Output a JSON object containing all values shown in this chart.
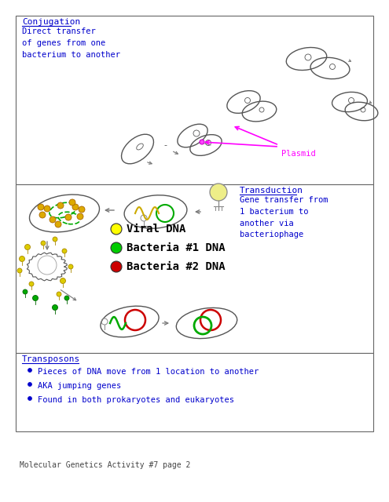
{
  "bg_color": "#ffffff",
  "border_color": "#666666",
  "title_footer": "Molecular Genetics Activity #7 page 2",
  "section1": {
    "title": "Conjugation",
    "text": "Direct transfer\nof genes from one\nbacterium to another",
    "text_color": "#0000cc",
    "title_color": "#0000cc",
    "plasmid_label": "Plasmid",
    "plasmid_color": "#ff00ff"
  },
  "section2": {
    "title": "Transduction",
    "title_color": "#0000cc",
    "text": "Gene transfer from\n1 bacterium to\nanother via\nbacteriophage",
    "text_color": "#0000cc",
    "legend": [
      {
        "label": "Viral DNA",
        "color": "#ffff00"
      },
      {
        "label": "Bacteria #1 DNA",
        "color": "#00cc00"
      },
      {
        "label": "Bacteria #2 DNA",
        "color": "#cc0000"
      }
    ]
  },
  "section3": {
    "title": "Transposons",
    "title_color": "#0000cc",
    "bullets": [
      "Pieces of DNA move from 1 location to another",
      "AKA jumping genes",
      "Found in both prokaryotes and eukaryotes"
    ],
    "bullet_color": "#0000cc"
  }
}
